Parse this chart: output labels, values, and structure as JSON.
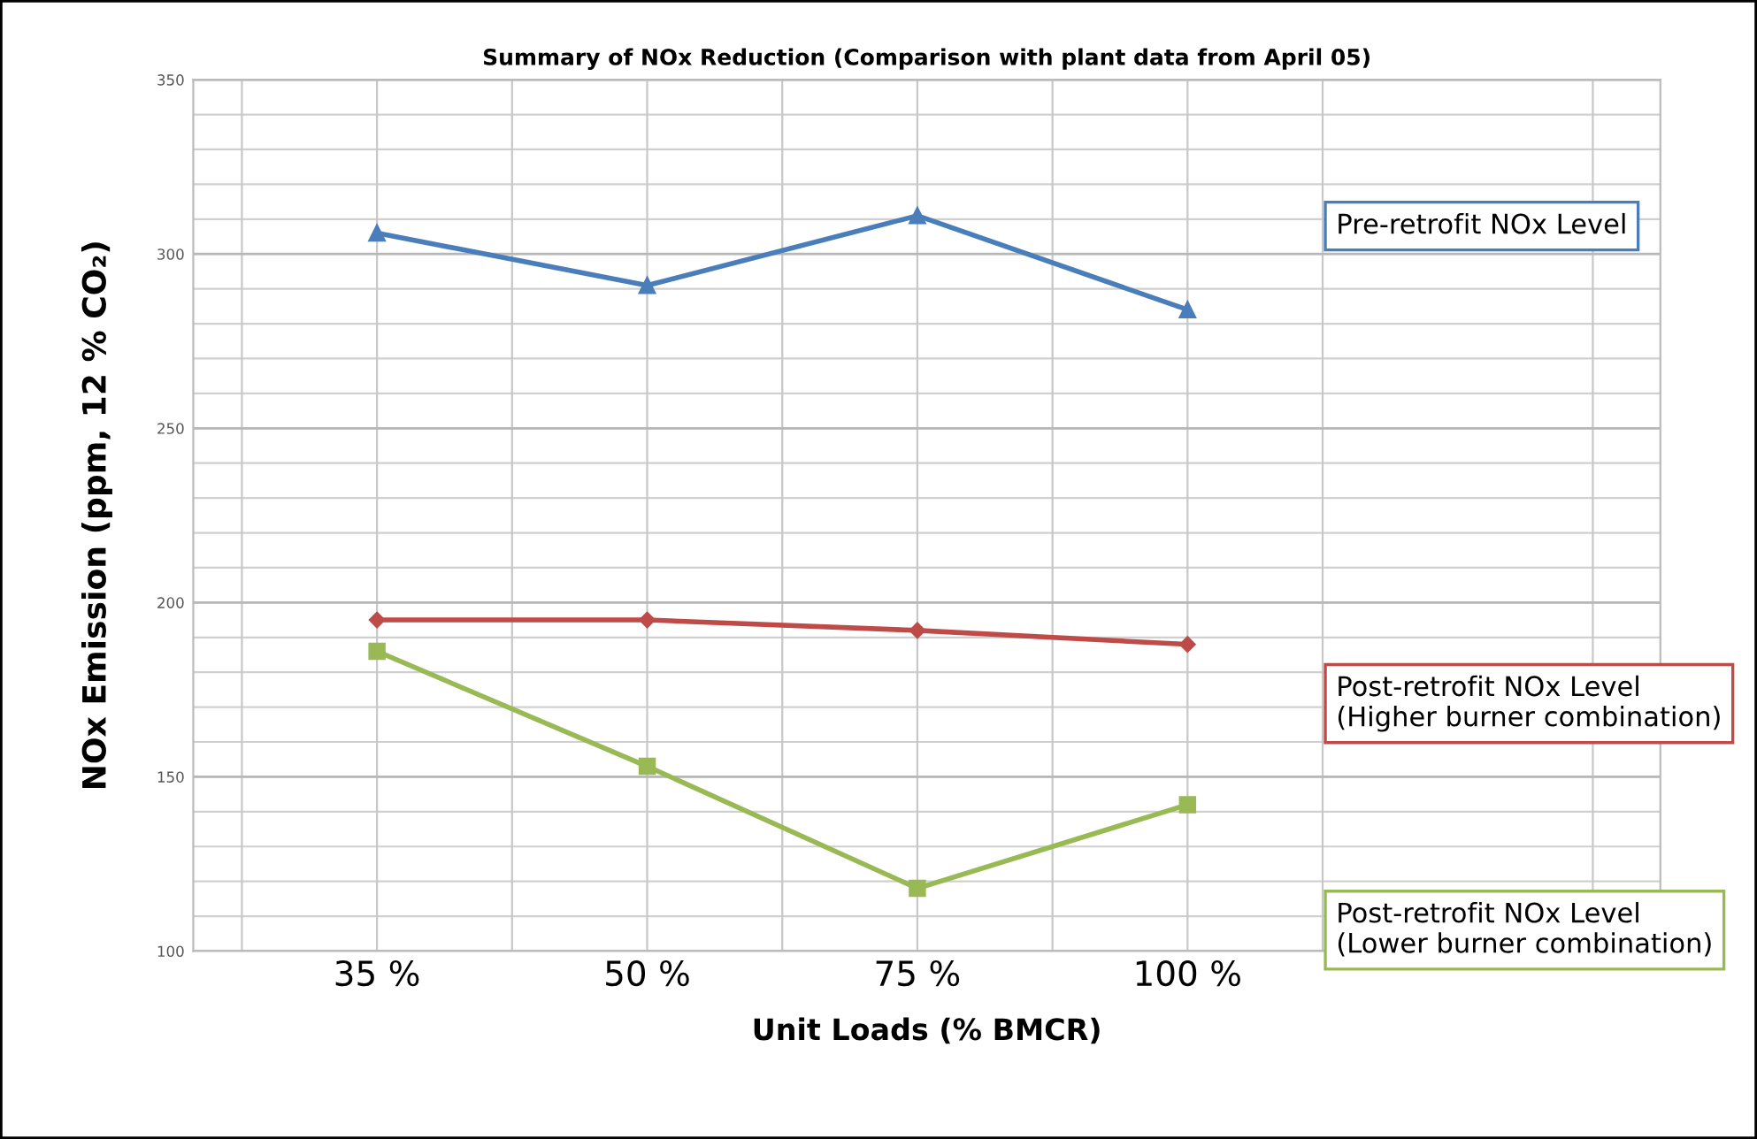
{
  "chart_data": {
    "type": "line",
    "title": "Summary of NOx Reduction (Comparison with plant data from April 05)",
    "xlabel": "Unit Loads (% BMCR)",
    "ylabel": "NOx Emission (ppm, 12 % CO₂)",
    "categories": [
      "35 %",
      "50 %",
      "75 %",
      "100 %"
    ],
    "series": [
      {
        "name": "Pre-retrofit NOx Level",
        "color": "#4a7ebb",
        "marker": "triangle",
        "values": [
          306,
          291,
          311,
          284
        ]
      },
      {
        "name": "Post-retrofit NOx Level\n(Higher burner combination)",
        "color": "#be4b48",
        "marker": "diamond",
        "values": [
          195,
          195,
          192,
          188
        ]
      },
      {
        "name": "Post-retrofit NOx Level\n(Lower burner combination)",
        "color": "#98b954",
        "marker": "square",
        "values": [
          186,
          153,
          118,
          142
        ]
      }
    ],
    "ylim": [
      100,
      350
    ],
    "yticks": [
      100,
      150,
      200,
      250,
      300,
      350
    ],
    "grid": true,
    "legend": false,
    "line_style": "solid"
  }
}
